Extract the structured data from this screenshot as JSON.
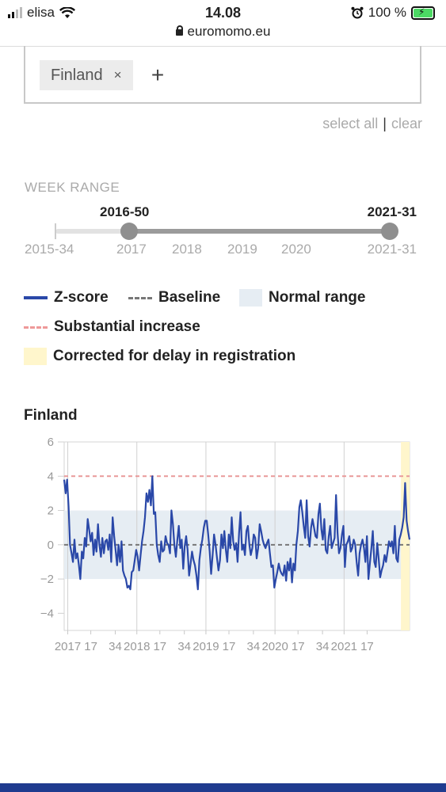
{
  "status_bar": {
    "carrier": "elisa",
    "time": "14.08",
    "battery": "100 %"
  },
  "browser": {
    "url": "euromomo.eu"
  },
  "country_select": {
    "chip_label": "Finland",
    "remove_symbol": "×",
    "add_symbol": "+"
  },
  "selection_links": {
    "select_all": "select all",
    "separator": "|",
    "clear": "clear"
  },
  "week_range": {
    "title": "WEEK RANGE",
    "selected_start": "2016-50",
    "selected_end": "2021-31",
    "min_label": "2015-34",
    "max_label": "2021-31",
    "year_ticks": [
      "2017",
      "2018",
      "2019",
      "2020"
    ],
    "selected_start_fraction": 0.22,
    "selected_end_fraction": 1.0
  },
  "legend": {
    "zscore": "Z-score",
    "baseline": "Baseline",
    "normal_range": "Normal range",
    "substantial_increase": "Substantial increase",
    "corrected": "Corrected for delay in registration"
  },
  "colors": {
    "zscore": "#2a48a8",
    "baseline": "#777777",
    "normal_range": "#e6edf3",
    "substantial": "#e99999",
    "corrected": "#fff6cc",
    "footer": "#1f3b8f"
  },
  "chart_data": {
    "type": "line",
    "title": "Finland",
    "y_ticks": [
      "6",
      "4",
      "2",
      "0",
      "−2",
      "−4"
    ],
    "ylim": [
      -5,
      6
    ],
    "x_tick_labels": [
      "2017",
      "17",
      "34",
      "2018",
      "17",
      "34",
      "2019",
      "17",
      "34",
      "2020",
      "17",
      "34",
      "2021",
      "17"
    ],
    "x_range_weeks": [
      0,
      240
    ],
    "baseline": 0,
    "normal_range": [
      -2,
      2
    ],
    "substantial_increase": 4,
    "corrected_weeks": [
      234,
      240
    ],
    "series": [
      {
        "values": [
          3.8,
          3.0,
          3.8,
          2.2,
          0.0,
          -0.5,
          -1.0,
          0.3,
          -0.8,
          -0.5,
          -1.2,
          -2.0,
          -0.4,
          -0.8,
          0.4,
          -0.1,
          1.5,
          0.9,
          0.2,
          0.7,
          -0.6,
          0.3,
          -0.4,
          1.2,
          0.0,
          -0.7,
          0.4,
          -0.5,
          0.2,
          0.3,
          -0.3,
          0.6,
          -1.0,
          1.6,
          0.5,
          -0.3,
          -1.2,
          0.0,
          -1.0,
          0.2,
          -1.5,
          -1.8,
          -2.0,
          -2.5,
          -2.4,
          -2.6,
          -1.6,
          -1.5,
          -0.9,
          -0.3,
          -0.7,
          -1.5,
          -0.6,
          0.2,
          0.8,
          1.6,
          3.0,
          2.5,
          3.2,
          2.3,
          4.0,
          1.8,
          1.9,
          0.0,
          -0.6,
          -1.0,
          0.2,
          -0.4,
          -0.3,
          0.5,
          0.1,
          0.0,
          -0.5,
          2.0,
          1.2,
          0.0,
          -0.7,
          0.3,
          1.1,
          -0.2,
          0.3,
          -1.4,
          -0.1,
          0.5,
          -0.3,
          -1.8,
          -1.1,
          -0.4,
          -0.9,
          -1.2,
          -1.8,
          -2.6,
          -0.9,
          -0.2,
          0.3,
          1.0,
          1.4,
          1.4,
          0.6,
          -0.4,
          -1.7,
          -0.6,
          0.6,
          0.0,
          -0.8,
          -1.5,
          -0.9,
          0.6,
          -0.2,
          0.8,
          -0.3,
          -1.0,
          0.6,
          -0.2,
          1.6,
          0.2,
          -0.3,
          0.1,
          -1.0,
          0.7,
          1.9,
          -0.3,
          0.0,
          -0.6,
          0.8,
          1.1,
          0.0,
          -0.6,
          -0.2,
          0.6,
          0.4,
          -0.8,
          -0.2,
          1.2,
          0.8,
          0.3,
          0.0,
          -0.2,
          0.1,
          0.3,
          -0.5,
          -1.3,
          -1.2,
          -2.5,
          -2.0,
          -1.6,
          -1.1,
          -1.5,
          -1.7,
          -1.8,
          -1.2,
          -2.1,
          -1.0,
          -1.5,
          -0.8,
          -2.2,
          -1.1,
          -1.5,
          0.0,
          0.8,
          2.2,
          2.6,
          1.9,
          1.1,
          0.4,
          2.6,
          0.5,
          -0.1,
          1.0,
          1.5,
          1.0,
          0.5,
          0.4,
          1.8,
          2.4,
          0.9,
          0.3,
          1.5,
          -0.3,
          -0.5,
          0.5,
          1.1,
          -0.2,
          0.1,
          0.4,
          2.9,
          0.7,
          -0.5,
          -0.2,
          0.6,
          1.1,
          -1.3,
          0.0,
          0.2,
          0.5,
          -0.4,
          -0.2,
          0.3,
          0.0,
          -1.0,
          -1.8,
          -0.5,
          0.0,
          0.3,
          -0.2,
          -1.0,
          0.5,
          -2.0,
          -1.1,
          -0.2,
          0.8,
          -1.0,
          -1.3,
          0.1,
          -0.8,
          -1.9,
          -1.5,
          -1.2,
          -0.6,
          -1.0,
          -0.4,
          0.2,
          -0.1,
          0.2,
          -0.5,
          1.1,
          -0.8,
          -1.0,
          0.3,
          0.6,
          1.0,
          1.6,
          3.6,
          1.4,
          0.8,
          0.3
        ]
      }
    ]
  }
}
